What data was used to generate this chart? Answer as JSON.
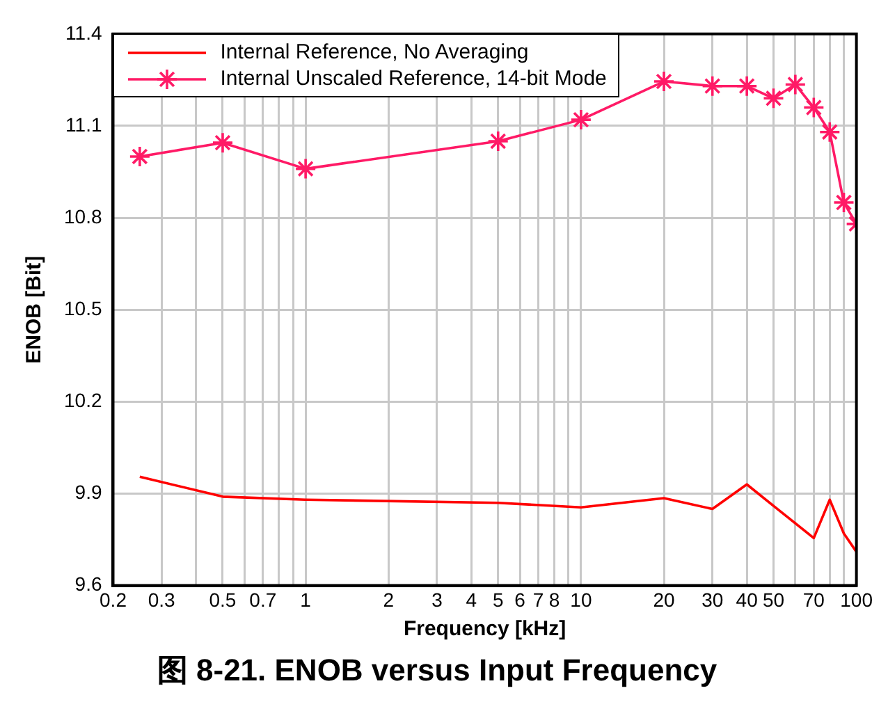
{
  "chart_data": {
    "type": "line",
    "title": "图 8-21. ENOB versus Input Frequency",
    "xlabel": "Frequency [kHz]",
    "ylabel": "ENOB [Bit]",
    "log": "x",
    "grid": true,
    "legend": "top left",
    "line_style": "solid",
    "xlim": [
      0.2,
      100
    ],
    "xticks": [
      0.2,
      0.3,
      {
        "value": 0.4,
        "label": null
      },
      0.5,
      {
        "value": 0.6,
        "label": null
      },
      0.7,
      {
        "value": 0.8,
        "label": null
      },
      {
        "value": 0.9,
        "label": null
      },
      1,
      2,
      3,
      4,
      5,
      6,
      7,
      8,
      {
        "value": 9,
        "label": null
      },
      10,
      20,
      30,
      40,
      50,
      {
        "value": 60,
        "label": null
      },
      70,
      {
        "value": 80,
        "label": null
      },
      {
        "value": 90,
        "label": null
      },
      100
    ],
    "ylim": [
      9.6,
      11.4
    ],
    "yticks": [
      9.6,
      9.9,
      10.2,
      10.5,
      10.8,
      11.1,
      11.4
    ],
    "series": [
      {
        "name": "Internal Reference, No Averaging",
        "color": "#ff0000",
        "marker": "none",
        "x": [
          0.25,
          0.5,
          1,
          5,
          10,
          20,
          30,
          40,
          50,
          70,
          80,
          90,
          100
        ],
        "values": [
          9.955,
          9.89,
          9.88,
          9.87,
          9.855,
          9.885,
          9.85,
          9.93,
          9.86,
          9.755,
          9.88,
          9.77,
          9.71
        ]
      },
      {
        "name": "Internal Unscaled Reference, 14-bit Mode",
        "color": "#ff1a66",
        "marker": "cross",
        "x": [
          0.25,
          0.5,
          1,
          5,
          10,
          20,
          30,
          40,
          50,
          60,
          70,
          80,
          90,
          100
        ],
        "values": [
          11.0,
          11.045,
          10.96,
          11.05,
          11.12,
          11.245,
          11.23,
          11.23,
          11.19,
          11.235,
          11.16,
          11.08,
          10.85,
          10.78
        ]
      }
    ]
  }
}
